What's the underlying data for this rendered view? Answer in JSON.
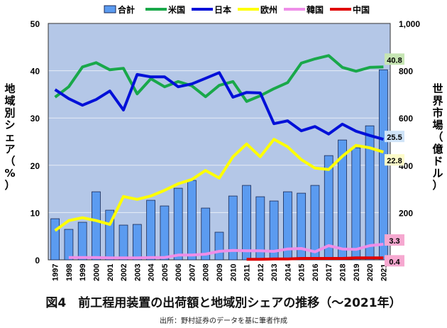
{
  "chart_data": {
    "type": "bar+line",
    "title": "図4　前工程用装置の出荷額と地域別シェアの推移（～2021年）",
    "source": "出所：野村証券のデータを基に筆者作成",
    "ylabel_left": "地域別シェア（%）",
    "ylabel_right": "世界市場（億ドル）",
    "ylim_left": [
      0,
      50
    ],
    "ylim_right": [
      0,
      1000
    ],
    "yticks_left": [
      "0",
      "10",
      "20",
      "30",
      "40",
      "50"
    ],
    "yticks_right": [
      "0",
      "200",
      "400",
      "600",
      "800",
      "1,000"
    ],
    "grid": true,
    "legend_placement": "top",
    "categories": [
      "1997",
      "1998",
      "1999",
      "2000",
      "2001",
      "2002",
      "2003",
      "2004",
      "2005",
      "2006",
      "2007",
      "2008",
      "2009",
      "2010",
      "2011",
      "2012",
      "2013",
      "2014",
      "2015",
      "2016",
      "2017",
      "2018",
      "2019",
      "2020",
      "2021"
    ],
    "bars": {
      "name": "合計",
      "axis": "right",
      "color": "#5b9bf0",
      "values": [
        174,
        129,
        159,
        288,
        210,
        147,
        150,
        252,
        228,
        303,
        336,
        219,
        117,
        270,
        315,
        267,
        249,
        288,
        282,
        315,
        441,
        507,
        474,
        567,
        804
      ]
    },
    "series": [
      {
        "name": "米国",
        "color": "#19a84a",
        "axis": "left",
        "values": [
          34.4,
          36.6,
          40.8,
          41.7,
          40.2,
          40.5,
          35.1,
          38.3,
          36.6,
          37.7,
          36.8,
          34.5,
          36.9,
          37.7,
          33.5,
          34.7,
          36.2,
          37.5,
          41.6,
          42.5,
          43.2,
          40.7,
          39.9,
          40.7,
          40.8
        ],
        "end_label": "40.8",
        "label_bg": "#c6e5b3"
      },
      {
        "name": "日本",
        "color": "#0010d8",
        "axis": "left",
        "values": [
          36.0,
          34.1,
          32.7,
          33.9,
          35.7,
          31.7,
          39.2,
          38.7,
          38.7,
          36.6,
          37.2,
          38.4,
          39.6,
          34.4,
          35.4,
          35.3,
          28.8,
          29.4,
          27.3,
          28.2,
          26.6,
          28.7,
          27.2,
          26.3,
          25.5
        ],
        "end_label": "25.5",
        "label_bg": "#cfe3f7"
      },
      {
        "name": "欧州",
        "color": "#ffff00",
        "axis": "left",
        "values": [
          6.2,
          8.3,
          8.9,
          8.3,
          7.5,
          13.4,
          12.8,
          13.5,
          14.7,
          16.1,
          17.0,
          18.9,
          17.3,
          21.8,
          24.5,
          21.8,
          25.5,
          23.9,
          21.2,
          19.4,
          19.1,
          21.9,
          24.2,
          23.7,
          22.8
        ],
        "end_label": "22.8",
        "label_bg": "#fdfbc9"
      },
      {
        "name": "韓国",
        "color": "#ee8ee8",
        "axis": "left",
        "values": [
          null,
          0.5,
          0.5,
          0.5,
          0.4,
          0.4,
          0.4,
          0.5,
          0.5,
          1.0,
          1.0,
          1.2,
          1.8,
          2.0,
          1.9,
          1.9,
          1.8,
          2.3,
          2.4,
          1.7,
          3.0,
          2.3,
          2.2,
          3.0,
          3.3
        ],
        "end_label": "3.3",
        "label_bg": "#f6a8d0"
      },
      {
        "name": "中国",
        "color": "#e00000",
        "axis": "left",
        "values": [
          null,
          null,
          null,
          null,
          null,
          null,
          null,
          null,
          null,
          null,
          null,
          null,
          null,
          null,
          0.1,
          0.1,
          0.2,
          0.2,
          0.3,
          0.3,
          0.3,
          0.3,
          0.4,
          0.4,
          0.4
        ],
        "end_label": "0.4",
        "label_bg": "#f6a8d0"
      }
    ]
  }
}
